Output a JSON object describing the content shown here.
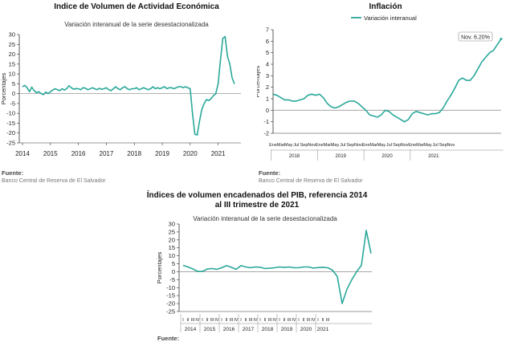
{
  "page": {
    "colors": {
      "line": "#2aa89a",
      "axis": "#333333",
      "grid": "#dddddd",
      "zero": "#999999"
    }
  },
  "chart_data": [
    {
      "type": "line",
      "title": "Indice de Volumen de  Actividad Económica",
      "subtitle": "Variación interanual de la serie desestacionalizada",
      "ylabel": "Porcentajes",
      "xlabel": "",
      "ylim": [
        -25,
        30
      ],
      "yticks": [
        30,
        25,
        20,
        15,
        10,
        5,
        0,
        -5,
        -10,
        -15,
        -20,
        -25
      ],
      "xticks": [
        "2014",
        "2015",
        "2016",
        "2017",
        "2018",
        "2019",
        "2020",
        "2021"
      ],
      "x_start_year": 2014,
      "grid": false,
      "series": [
        {
          "values": [
            3.5,
            4.2,
            3.0,
            1.0,
            3.3,
            1.5,
            0.5,
            1.0,
            0.0,
            -0.5,
            0.8,
            0.0,
            1.0,
            1.8,
            2.5,
            2.0,
            1.5,
            2.5,
            1.8,
            2.6,
            4.0,
            3.0,
            2.2,
            2.6,
            2.5,
            2.0,
            3.0,
            2.8,
            2.0,
            2.4,
            3.0,
            2.5,
            2.0,
            2.7,
            2.2,
            2.5,
            3.0,
            2.0,
            1.5,
            2.5,
            3.5,
            2.5,
            2.0,
            3.0,
            3.5,
            2.5,
            2.0,
            2.5,
            2.5,
            3.0,
            2.0,
            2.5,
            3.0,
            2.5,
            2.0,
            2.5,
            3.5,
            2.5,
            3.0,
            2.5,
            3.0,
            3.5,
            2.5,
            3.0,
            3.0,
            2.5,
            3.0,
            3.5,
            3.5,
            3.0,
            3.5,
            3.0,
            2.5,
            -10.0,
            -20.5,
            -21.0,
            -14.0,
            -8.0,
            -5.0,
            -3.0,
            -3.5,
            -2.5,
            -1.0,
            0.0,
            5.0,
            17.0,
            28.0,
            29.0,
            19.0,
            15.0,
            8.0,
            5.0
          ]
        }
      ],
      "source_label": "Fuente:",
      "source_text": "Banco Central de Reserva de El Salvador"
    },
    {
      "type": "line",
      "title": "Inflación",
      "legend": "Variación interanual",
      "ylabel": "Porcentajes",
      "xlabel": "",
      "ylim": [
        -2,
        7
      ],
      "yticks": [
        7,
        6,
        5,
        4,
        3,
        2,
        1,
        0,
        -1,
        -2
      ],
      "month_ticks": [
        "Ene",
        "Mar",
        "May",
        "Jul",
        "Sep",
        "Nov"
      ],
      "years": [
        "2018",
        "2019",
        "2020",
        "2021"
      ],
      "annotation": "Nov. 6.20%",
      "grid": false,
      "series": [
        {
          "name": "Variación interanual",
          "values": [
            1.4,
            1.3,
            1.1,
            0.9,
            0.9,
            0.8,
            0.8,
            0.9,
            1.0,
            1.3,
            1.4,
            1.3,
            1.4,
            1.1,
            0.6,
            0.3,
            0.2,
            0.3,
            0.5,
            0.7,
            0.8,
            0.8,
            0.6,
            0.3,
            0.0,
            -0.4,
            -0.5,
            -0.6,
            -0.4,
            0.0,
            -0.1,
            -0.4,
            -0.6,
            -0.8,
            -1.0,
            -0.8,
            -0.3,
            -0.1,
            -0.2,
            -0.3,
            -0.4,
            -0.3,
            -0.3,
            -0.2,
            0.2,
            0.8,
            1.3,
            1.9,
            2.6,
            2.8,
            2.6,
            2.6,
            3.0,
            3.6,
            4.2,
            4.6,
            5.0,
            5.2,
            5.7,
            6.2
          ]
        }
      ],
      "source_label": "Fuente:",
      "source_text": "Banco Central de Reserva de El Salvador"
    },
    {
      "type": "line",
      "title": "Índices de volumen encadenados del PIB, referencia 2014",
      "title2": "al III trimestre de 2021",
      "subtitle": "Variación interanual de la serie desestacionalizada",
      "ylabel": "Porcentajes",
      "xlabel": "",
      "ylim": [
        -25,
        30
      ],
      "yticks": [
        30,
        25,
        20,
        15,
        10,
        5,
        0,
        -5,
        -10,
        -15,
        -20,
        -25
      ],
      "quarter_ticks": [
        "I",
        "II",
        "III",
        "IV"
      ],
      "years": [
        "2014",
        "2015",
        "2016",
        "2017",
        "2018",
        "2019",
        "2020",
        "2021"
      ],
      "grid": false,
      "series": [
        {
          "values": [
            4.0,
            3.0,
            1.8,
            0.2,
            0.2,
            1.7,
            2.0,
            1.5,
            2.5,
            3.8,
            2.8,
            1.5,
            3.8,
            3.0,
            2.5,
            3.0,
            2.8,
            2.0,
            2.2,
            2.5,
            3.0,
            2.7,
            3.0,
            2.5,
            2.5,
            3.0,
            3.0,
            2.3,
            2.6,
            2.8,
            2.5,
            1.0,
            -3.0,
            -20.0,
            -11.0,
            -5.0,
            0.0,
            4.0,
            26.0,
            11.5
          ]
        }
      ],
      "source_label": "Fuente:"
    }
  ]
}
